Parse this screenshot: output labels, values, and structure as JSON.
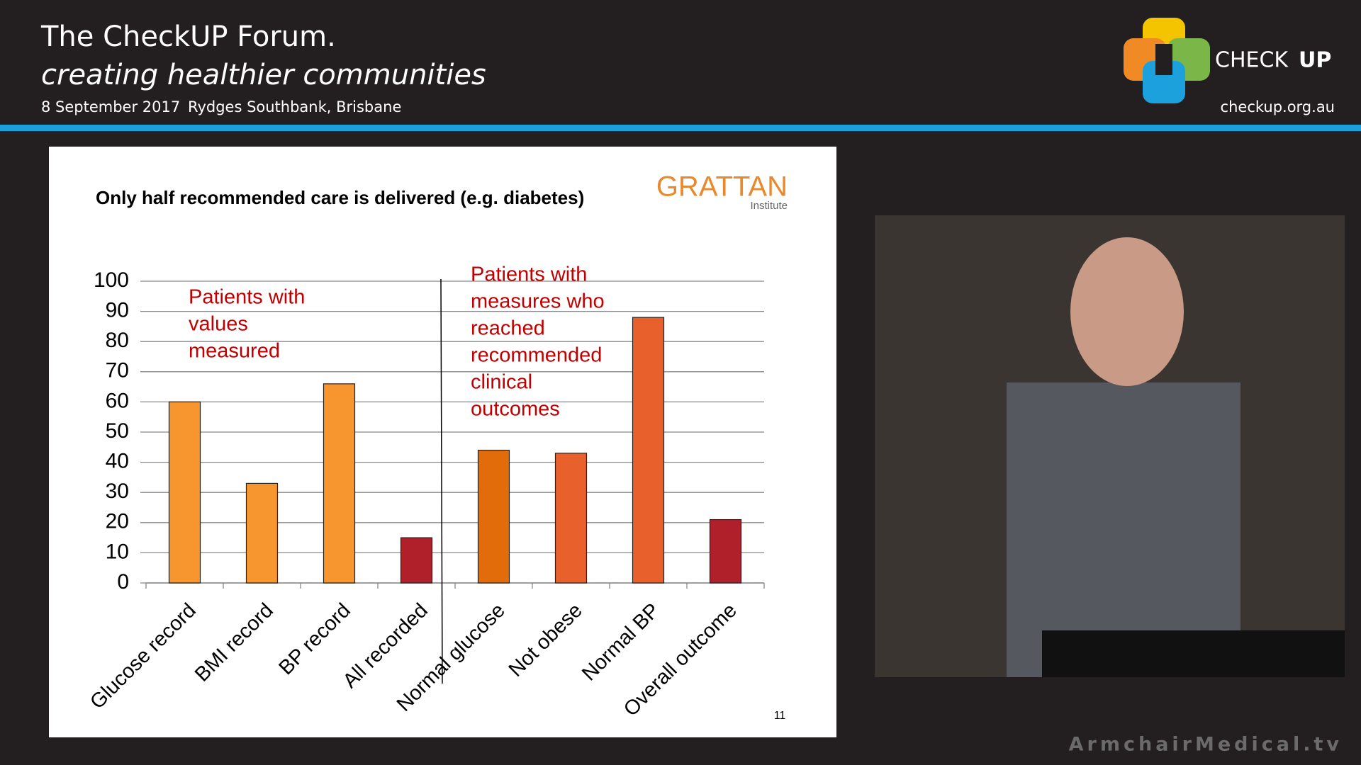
{
  "header": {
    "title": "The CheckUP Forum.",
    "subtitle": "creating healthier communities",
    "date": "8 September 2017",
    "venue": "Rydges Southbank, Brisbane"
  },
  "logo": {
    "check": "CHECK",
    "up": "UP",
    "url": "checkup.org.au"
  },
  "slide": {
    "source": "GRATTAN",
    "source_sub": "Institute",
    "page": "11"
  },
  "footer": "ArmchairMedical.tv",
  "chart_data": {
    "type": "bar",
    "title": "Only half recommended care is delivered (e.g. diabetes)",
    "categories": [
      "Glucose record",
      "BMI record",
      "BP record",
      "All recorded",
      "Normal glucose",
      "Not obese",
      "Normal BP",
      "Overall outcome"
    ],
    "values": [
      60,
      33,
      66,
      15,
      44,
      43,
      88,
      21
    ],
    "colors": [
      "#f7962f",
      "#f7962f",
      "#f7962f",
      "#b0202a",
      "#e36c0a",
      "#e8602c",
      "#e8602c",
      "#b0202a"
    ],
    "ylim": [
      0,
      100
    ],
    "yticks": [
      0,
      10,
      20,
      30,
      40,
      50,
      60,
      70,
      80,
      90,
      100
    ],
    "grid": true,
    "annotations": [
      {
        "lines": [
          "Patients with",
          "values",
          "measured"
        ],
        "color": "#c00000"
      },
      {
        "lines": [
          "Patients with",
          "measures who",
          "reached",
          "recommended",
          "clinical",
          "outcomes"
        ],
        "color": "#c00000"
      }
    ]
  }
}
